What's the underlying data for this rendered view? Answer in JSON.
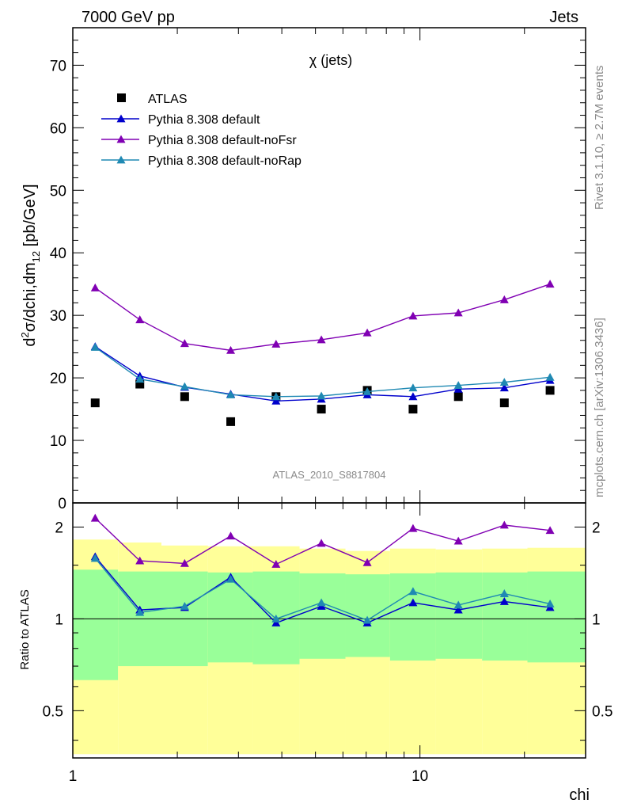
{
  "header": {
    "left": "7000 GeV pp",
    "right": "Jets"
  },
  "side_text": {
    "rivet": "Rivet 3.1.10, ≥ 2.7M events",
    "mcplots": "mcplots.cern.ch [arXiv:1306.3436]"
  },
  "colors": {
    "data": "#000000",
    "default": "#0000cc",
    "noFsr": "#8000b3",
    "noRap": "#1f89b3",
    "band_outer": "#ffff99",
    "band_inner": "#99ff99"
  },
  "chart_data": [
    {
      "type": "line",
      "title": "χ (jets)",
      "analysis_tag": "ATLAS_2010_S8817804",
      "ylabel": "d²σ/dchi,dm₁₂ [pb/GeV]",
      "xscale": "log",
      "xlim": [
        1,
        30
      ],
      "ylim": [
        0,
        76
      ],
      "yticks": [
        0,
        10,
        20,
        30,
        40,
        50,
        60,
        70
      ],
      "x": [
        1.16,
        1.56,
        2.1,
        2.85,
        3.85,
        5.2,
        7.05,
        9.55,
        12.9,
        17.5,
        23.7
      ],
      "series": [
        {
          "name": "ATLAS",
          "key": "data",
          "marker": "square",
          "values": [
            16.0,
            19.0,
            17.0,
            13.0,
            17.0,
            15.0,
            18.0,
            15.0,
            17.0,
            16.0,
            18.0
          ]
        },
        {
          "name": "Pythia 8.308 default",
          "key": "default",
          "marker": "triangle",
          "values": [
            25.0,
            20.3,
            18.5,
            17.4,
            16.3,
            16.6,
            17.3,
            17.0,
            18.2,
            18.4,
            19.6
          ]
        },
        {
          "name": "Pythia 8.308 default-noFsr",
          "key": "noFsr",
          "marker": "triangle",
          "values": [
            34.4,
            29.3,
            25.5,
            24.4,
            25.4,
            26.1,
            27.2,
            29.9,
            30.4,
            32.5,
            35.0
          ]
        },
        {
          "name": "Pythia 8.308 default-noRap",
          "key": "noRap",
          "marker": "triangle",
          "values": [
            24.9,
            19.8,
            18.6,
            17.3,
            17.0,
            17.1,
            17.8,
            18.4,
            18.8,
            19.3,
            20.1
          ]
        }
      ],
      "legend": "top-left"
    },
    {
      "type": "line",
      "ylabel": "Ratio to ATLAS",
      "xlabel": "chi",
      "xscale": "log",
      "xlim": [
        1,
        30
      ],
      "yscale": "log",
      "ylim": [
        0.35,
        2.4
      ],
      "yticks": [
        0.5,
        1,
        2
      ],
      "xticks": [
        1,
        10
      ],
      "bins": [
        1,
        1.35,
        1.8,
        2.45,
        3.3,
        4.5,
        6.1,
        8.2,
        11.1,
        15.1,
        20.4,
        30
      ],
      "band_outer": {
        "lo": [
          0.36,
          0.36,
          0.36,
          0.36,
          0.36,
          0.36,
          0.36,
          0.36,
          0.36,
          0.36,
          0.36
        ],
        "hi": [
          1.82,
          1.78,
          1.74,
          1.73,
          1.73,
          1.7,
          1.67,
          1.7,
          1.69,
          1.7,
          1.71
        ]
      },
      "band_mid": {
        "lo": [
          0.63,
          0.7,
          0.7,
          0.72,
          0.71,
          0.74,
          0.75,
          0.73,
          0.74,
          0.73,
          0.72
        ],
        "hi": [
          1.45,
          1.43,
          1.43,
          1.42,
          1.43,
          1.41,
          1.4,
          1.41,
          1.42,
          1.42,
          1.43
        ]
      },
      "x": [
        1.16,
        1.56,
        2.1,
        2.85,
        3.85,
        5.2,
        7.05,
        9.55,
        12.9,
        17.5,
        23.7
      ],
      "series": [
        {
          "name": "Pythia 8.308 default",
          "key": "default",
          "values": [
            1.6,
            1.07,
            1.09,
            1.37,
            0.97,
            1.1,
            0.97,
            1.13,
            1.07,
            1.14,
            1.09
          ]
        },
        {
          "name": "Pythia 8.308 default-noFsr",
          "key": "noFsr",
          "values": [
            2.14,
            1.55,
            1.52,
            1.87,
            1.51,
            1.77,
            1.53,
            1.98,
            1.8,
            2.03,
            1.95
          ]
        },
        {
          "name": "Pythia 8.308 default-noRap",
          "key": "noRap",
          "values": [
            1.58,
            1.05,
            1.1,
            1.35,
            1.0,
            1.13,
            0.99,
            1.23,
            1.11,
            1.21,
            1.12
          ]
        }
      ]
    }
  ]
}
